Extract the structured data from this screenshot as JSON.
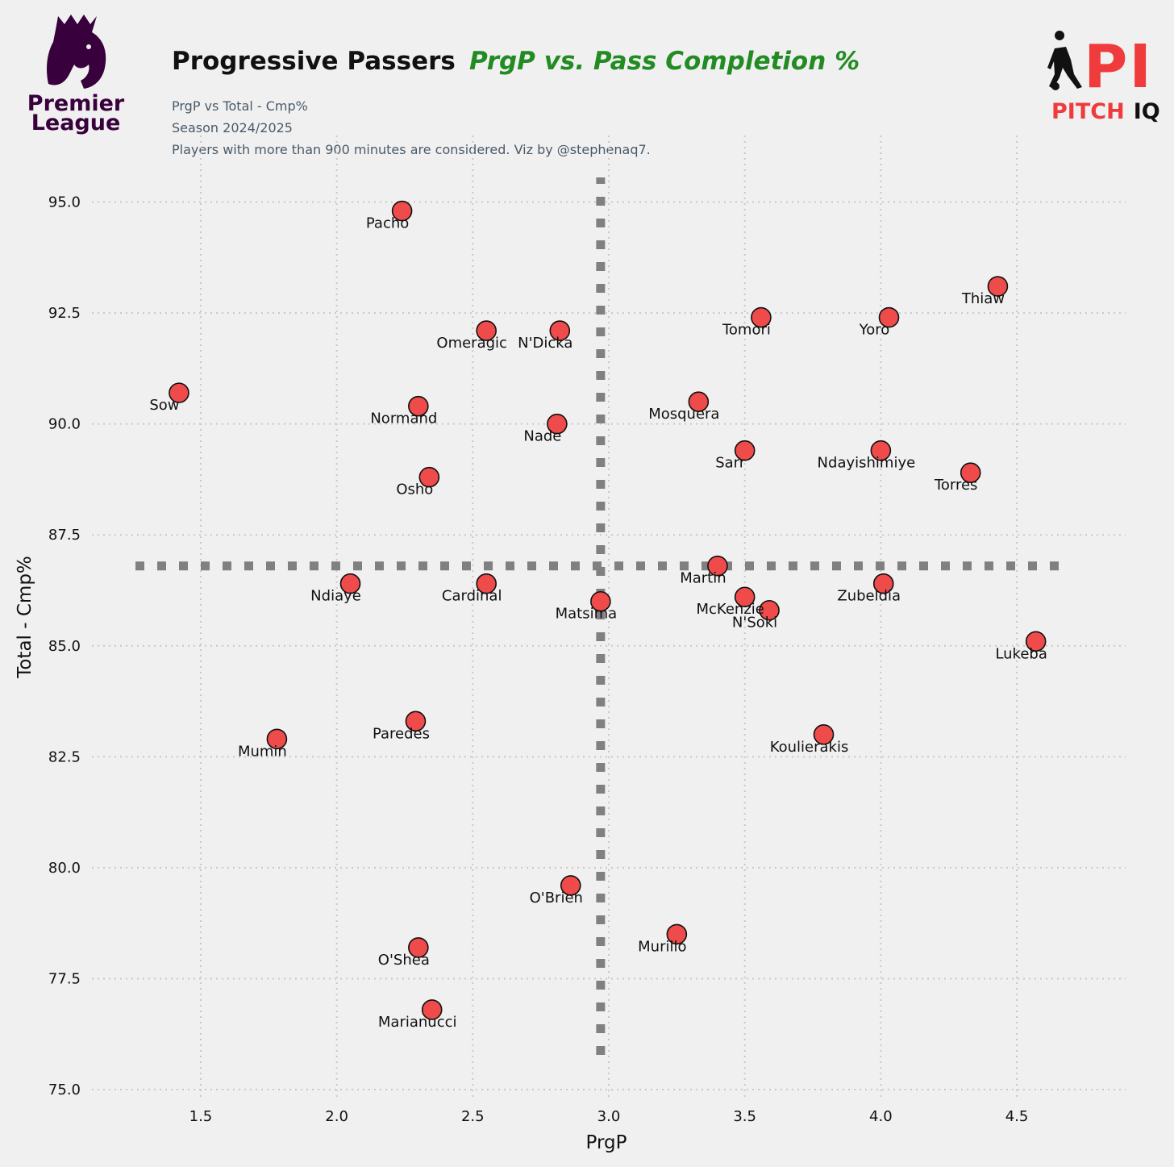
{
  "header": {
    "title_main": "Progressive Passers",
    "title_accent": "PrgP vs. Pass Completion %",
    "subtitle_lines": [
      "PrgP vs Total - Cmp%",
      "Season 2024/2025",
      "Players with more than 900 minutes are considered. Viz by @stephenaq7."
    ]
  },
  "logos": {
    "premier_league": {
      "line1": "Premier",
      "line2": "League",
      "color": "#38003c"
    },
    "pitch_iq": {
      "mark": "PI",
      "word1": "PITCH",
      "word2": "IQ",
      "accent": "#ef3b3b"
    }
  },
  "colors": {
    "background": "#f0f0f0",
    "point_fill": "#ef4b4b",
    "point_stroke": "#111111",
    "median_line": "#808080",
    "grid": "#c8c8c8",
    "title_accent": "#228b22"
  },
  "chart_data": {
    "type": "scatter",
    "xlabel": "PrgP",
    "ylabel": "Total - Cmp%",
    "xlim": [
      1.1,
      4.9
    ],
    "ylim": [
      74.8,
      96.5
    ],
    "xticks": [
      1.5,
      2.0,
      2.5,
      3.0,
      3.5,
      4.0,
      4.5
    ],
    "yticks": [
      75.0,
      77.5,
      80.0,
      82.5,
      85.0,
      87.5,
      90.0,
      92.5,
      95.0
    ],
    "xtick_labels": [
      "1.5",
      "2.0",
      "2.5",
      "3.0",
      "3.5",
      "4.0",
      "4.5"
    ],
    "ytick_labels": [
      "75.0",
      "77.5",
      "80.0",
      "82.5",
      "85.0",
      "87.5",
      "90.0",
      "92.5",
      "95.0"
    ],
    "grid": true,
    "reference_lines": {
      "x": 2.97,
      "y": 86.8
    },
    "points": [
      {
        "name": "Pacho",
        "x": 2.24,
        "y": 94.8
      },
      {
        "name": "Thiaw",
        "x": 4.43,
        "y": 93.1
      },
      {
        "name": "Tomori",
        "x": 3.56,
        "y": 92.4
      },
      {
        "name": "Yoro",
        "x": 4.03,
        "y": 92.4
      },
      {
        "name": "Omeragic",
        "x": 2.55,
        "y": 92.1
      },
      {
        "name": "N'Dicka",
        "x": 2.82,
        "y": 92.1
      },
      {
        "name": "Sow",
        "x": 1.42,
        "y": 90.7
      },
      {
        "name": "Mosquera",
        "x": 3.33,
        "y": 90.5
      },
      {
        "name": "Normand",
        "x": 2.3,
        "y": 90.4
      },
      {
        "name": "Nade",
        "x": 2.81,
        "y": 90.0
      },
      {
        "name": "Sarr",
        "x": 3.5,
        "y": 89.4
      },
      {
        "name": "Ndayishimiye",
        "x": 4.0,
        "y": 89.4
      },
      {
        "name": "Torres",
        "x": 4.33,
        "y": 88.9
      },
      {
        "name": "Osho",
        "x": 2.34,
        "y": 88.8
      },
      {
        "name": "Martin",
        "x": 3.4,
        "y": 86.8
      },
      {
        "name": "Ndiaye",
        "x": 2.05,
        "y": 86.4
      },
      {
        "name": "Cardinal",
        "x": 2.55,
        "y": 86.4
      },
      {
        "name": "Zubeldia",
        "x": 4.01,
        "y": 86.4
      },
      {
        "name": "McKenzie",
        "x": 3.5,
        "y": 86.1
      },
      {
        "name": "Matsima",
        "x": 2.97,
        "y": 86.0
      },
      {
        "name": "N'Soki",
        "x": 3.59,
        "y": 85.8
      },
      {
        "name": "Lukeba",
        "x": 4.57,
        "y": 85.1
      },
      {
        "name": "Paredes",
        "x": 2.29,
        "y": 83.3
      },
      {
        "name": "Koulierakis",
        "x": 3.79,
        "y": 83.0
      },
      {
        "name": "Mumin",
        "x": 1.78,
        "y": 82.9
      },
      {
        "name": "O'Brien",
        "x": 2.86,
        "y": 79.6
      },
      {
        "name": "Murillo",
        "x": 3.25,
        "y": 78.5
      },
      {
        "name": "O'Shea",
        "x": 2.3,
        "y": 78.2
      },
      {
        "name": "Marianucci",
        "x": 2.35,
        "y": 76.8
      }
    ]
  }
}
